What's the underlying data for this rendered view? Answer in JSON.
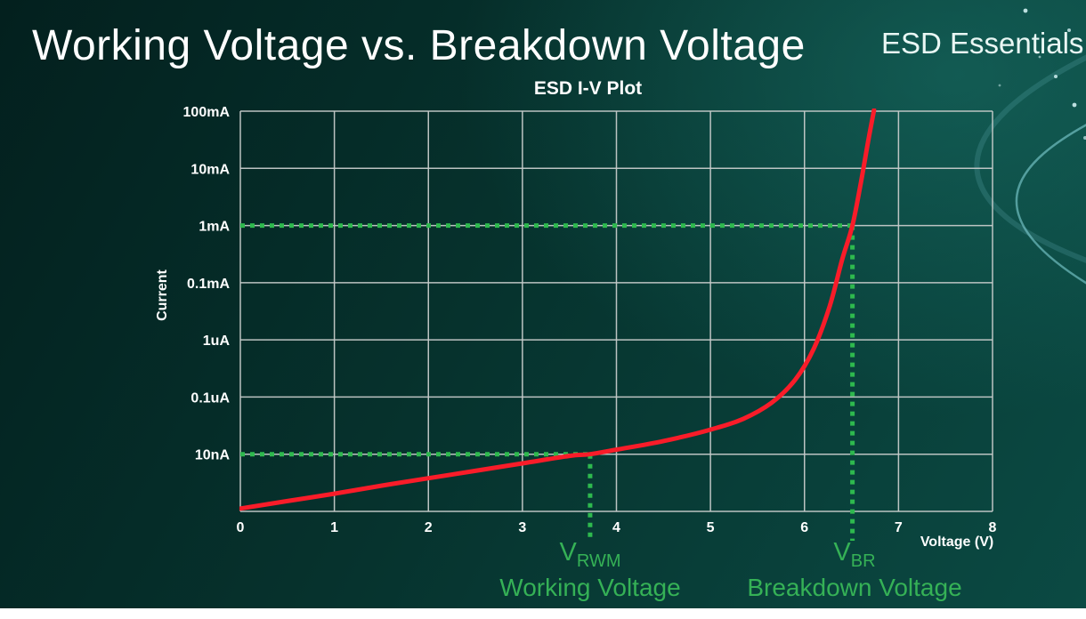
{
  "header": {
    "title": "Working Voltage vs. Breakdown Voltage",
    "brand": "ESD Essentials"
  },
  "colors": {
    "background_teal": "#06322d",
    "curve_red": "#f91c29",
    "guide_green": "#2eb94e",
    "annotation_green": "#35b156",
    "grid_gray": "#c6cbca",
    "text_white": "#ffffff"
  },
  "chart_data": {
    "type": "line",
    "title": "ESD I-V Plot",
    "xlabel": "Voltage (V)",
    "ylabel": "Current",
    "xlim": [
      0,
      8
    ],
    "x_ticks": [
      0,
      1,
      2,
      3,
      4,
      5,
      6,
      7,
      8
    ],
    "y_scale": "log-decades",
    "y_tick_labels_top_to_bottom": [
      "100mA",
      "10mA",
      "1mA",
      "0.1mA",
      "1uA",
      "0.1uA",
      "10nA"
    ],
    "y_level_note": "bottom axis = level 0, each horizontal gridline = +1 level, top border = level 7 (100mA)",
    "grid": true,
    "series": [
      {
        "name": "ESD device I-V curve",
        "color": "#f91c29",
        "points_voltage_level": [
          [
            0,
            0.05
          ],
          [
            0.5,
            0.18
          ],
          [
            1,
            0.31
          ],
          [
            1.5,
            0.45
          ],
          [
            2,
            0.58
          ],
          [
            2.5,
            0.71
          ],
          [
            3,
            0.84
          ],
          [
            3.5,
            0.97
          ],
          [
            3.72,
            1.0
          ],
          [
            4,
            1.08
          ],
          [
            4.5,
            1.23
          ],
          [
            5,
            1.43
          ],
          [
            5.35,
            1.62
          ],
          [
            5.65,
            1.9
          ],
          [
            5.9,
            2.3
          ],
          [
            6.1,
            2.85
          ],
          [
            6.27,
            3.6
          ],
          [
            6.4,
            4.4
          ],
          [
            6.51,
            5.0
          ],
          [
            6.6,
            5.75
          ],
          [
            6.68,
            6.5
          ],
          [
            6.74,
            7.02
          ]
        ]
      }
    ],
    "guides": [
      {
        "name": "working-voltage-guide",
        "voltage": 3.72,
        "current_label": "10nA"
      },
      {
        "name": "breakdown-voltage-guide",
        "voltage": 6.51,
        "current_label": "1mA"
      }
    ]
  },
  "annotations": {
    "vrwm": {
      "symbol_main": "V",
      "symbol_sub": "RWM",
      "label": "Working Voltage"
    },
    "vbr": {
      "symbol_main": "V",
      "symbol_sub": "BR",
      "label": "Breakdown Voltage"
    }
  }
}
